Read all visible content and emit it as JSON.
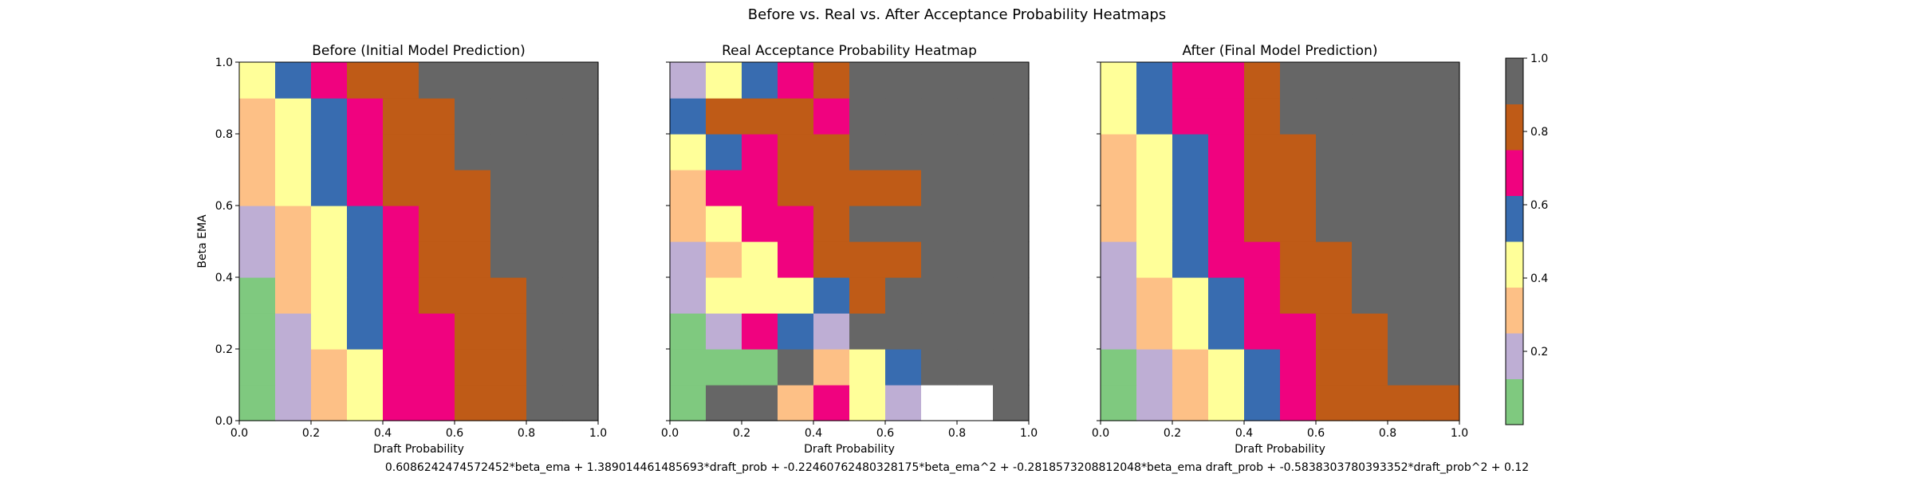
{
  "figure": {
    "title": "Before vs. Real vs. After Acceptance Probability Heatmaps",
    "footer": "0.6086242474572452*beta_ema + 1.389014461485693*draft_prob + -0.22460762480328175*beta_ema^2 + -0.2818573208812048*beta_ema draft_prob + -0.5838303780393352*draft_prob^2 + 0.12"
  },
  "colors": {
    "bins": [
      "#7fc97f",
      "#beaed4",
      "#fdc086",
      "#ffff99",
      "#386cb0",
      "#f0027f",
      "#bf5b17",
      "#666666"
    ],
    "missing": "#ffffff"
  },
  "chart_data": [
    {
      "type": "heatmap",
      "title": "Before (Initial Model Prediction)",
      "xlabel": "Draft Probability",
      "ylabel": "Beta EMA",
      "xlim": [
        0,
        1
      ],
      "ylim": [
        0,
        1
      ],
      "xticks": [
        "0.0",
        "0.2",
        "0.4",
        "0.6",
        "0.8",
        "1.0"
      ],
      "yticks": [
        "0.0",
        "0.2",
        "0.4",
        "0.6",
        "0.8",
        "1.0"
      ],
      "x_bins": [
        0.0,
        0.1,
        0.2,
        0.3,
        0.4,
        0.5,
        0.6,
        0.7,
        0.8,
        0.9
      ],
      "y_bins": [
        0.0,
        0.1,
        0.2,
        0.3,
        0.4,
        0.5,
        0.6,
        0.7,
        0.8,
        0.9
      ],
      "grid": false,
      "values": [
        [
          0.1,
          0.2,
          0.3,
          0.45,
          0.65,
          0.7,
          0.8,
          0.8,
          0.9,
          0.9
        ],
        [
          0.1,
          0.2,
          0.3,
          0.45,
          0.65,
          0.7,
          0.8,
          0.8,
          0.9,
          0.9
        ],
        [
          0.1,
          0.2,
          0.45,
          0.55,
          0.65,
          0.7,
          0.8,
          0.8,
          0.9,
          0.9
        ],
        [
          0.1,
          0.3,
          0.45,
          0.55,
          0.7,
          0.75,
          0.8,
          0.8,
          0.9,
          0.9
        ],
        [
          0.2,
          0.3,
          0.45,
          0.55,
          0.7,
          0.8,
          0.8,
          0.9,
          0.9,
          0.9
        ],
        [
          0.2,
          0.3,
          0.45,
          0.55,
          0.7,
          0.8,
          0.8,
          0.9,
          0.9,
          0.9
        ],
        [
          0.3,
          0.45,
          0.55,
          0.7,
          0.8,
          0.8,
          0.8,
          0.9,
          0.9,
          0.9
        ],
        [
          0.3,
          0.45,
          0.55,
          0.7,
          0.8,
          0.8,
          0.9,
          0.9,
          0.9,
          0.9
        ],
        [
          0.3,
          0.45,
          0.55,
          0.7,
          0.8,
          0.8,
          0.9,
          0.9,
          0.9,
          0.9
        ],
        [
          0.45,
          0.55,
          0.7,
          0.8,
          0.8,
          0.9,
          0.9,
          0.9,
          0.9,
          0.9
        ]
      ]
    },
    {
      "type": "heatmap",
      "title": "Real Acceptance Probability Heatmap",
      "xlabel": "Draft Probability",
      "ylabel": "",
      "xlim": [
        0,
        1
      ],
      "ylim": [
        0,
        1
      ],
      "xticks": [
        "0.0",
        "0.2",
        "0.4",
        "0.6",
        "0.8",
        "1.0"
      ],
      "yticks": [],
      "x_bins": [
        0.0,
        0.1,
        0.2,
        0.3,
        0.4,
        0.5,
        0.6,
        0.7,
        0.8,
        0.9
      ],
      "y_bins": [
        0.0,
        0.1,
        0.2,
        0.3,
        0.4,
        0.5,
        0.6,
        0.7,
        0.8,
        0.9
      ],
      "grid": false,
      "values": [
        [
          0.1,
          0.9,
          0.9,
          0.3,
          0.7,
          0.45,
          0.2,
          null,
          null,
          0.9
        ],
        [
          0.1,
          0.1,
          0.1,
          0.9,
          0.3,
          0.45,
          0.55,
          0.9,
          0.9,
          0.9
        ],
        [
          0.1,
          0.2,
          0.7,
          0.55,
          0.2,
          0.9,
          0.9,
          0.9,
          0.9,
          0.9
        ],
        [
          0.2,
          0.45,
          0.45,
          0.45,
          0.55,
          0.8,
          0.9,
          0.9,
          0.9,
          0.9
        ],
        [
          0.2,
          0.3,
          0.45,
          0.7,
          0.8,
          0.8,
          0.8,
          0.9,
          0.9,
          0.9
        ],
        [
          0.3,
          0.45,
          0.7,
          0.7,
          0.8,
          0.9,
          0.9,
          0.9,
          0.9,
          0.9
        ],
        [
          0.3,
          0.7,
          0.7,
          0.8,
          0.8,
          0.8,
          0.8,
          0.9,
          0.9,
          0.9
        ],
        [
          0.45,
          0.55,
          0.7,
          0.8,
          0.8,
          0.9,
          0.9,
          0.9,
          0.9,
          0.9
        ],
        [
          0.55,
          0.8,
          0.8,
          0.8,
          0.7,
          0.9,
          0.9,
          0.9,
          0.9,
          0.9
        ],
        [
          0.2,
          0.45,
          0.55,
          0.7,
          0.8,
          0.9,
          0.9,
          0.9,
          0.9,
          0.9
        ]
      ]
    },
    {
      "type": "heatmap",
      "title": "After (Final Model Prediction)",
      "xlabel": "Draft Probability",
      "ylabel": "",
      "xlim": [
        0,
        1
      ],
      "ylim": [
        0,
        1
      ],
      "xticks": [
        "0.0",
        "0.2",
        "0.4",
        "0.6",
        "0.8",
        "1.0"
      ],
      "yticks": [],
      "x_bins": [
        0.0,
        0.1,
        0.2,
        0.3,
        0.4,
        0.5,
        0.6,
        0.7,
        0.8,
        0.9
      ],
      "y_bins": [
        0.0,
        0.1,
        0.2,
        0.3,
        0.4,
        0.5,
        0.6,
        0.7,
        0.8,
        0.9
      ],
      "grid": false,
      "values": [
        [
          0.1,
          0.2,
          0.3,
          0.45,
          0.55,
          0.7,
          0.75,
          0.8,
          0.8,
          0.8
        ],
        [
          0.1,
          0.2,
          0.3,
          0.45,
          0.55,
          0.7,
          0.75,
          0.8,
          0.9,
          0.9
        ],
        [
          0.2,
          0.3,
          0.45,
          0.55,
          0.7,
          0.7,
          0.8,
          0.8,
          0.9,
          0.9
        ],
        [
          0.2,
          0.3,
          0.45,
          0.55,
          0.7,
          0.8,
          0.8,
          0.9,
          0.9,
          0.9
        ],
        [
          0.2,
          0.45,
          0.55,
          0.7,
          0.7,
          0.8,
          0.8,
          0.9,
          0.9,
          0.9
        ],
        [
          0.3,
          0.45,
          0.55,
          0.7,
          0.8,
          0.8,
          0.9,
          0.9,
          0.9,
          0.9
        ],
        [
          0.3,
          0.45,
          0.55,
          0.7,
          0.8,
          0.8,
          0.9,
          0.9,
          0.9,
          0.9
        ],
        [
          0.3,
          0.45,
          0.55,
          0.7,
          0.8,
          0.8,
          0.9,
          0.9,
          0.9,
          0.9
        ],
        [
          0.45,
          0.55,
          0.7,
          0.7,
          0.8,
          0.9,
          0.9,
          0.9,
          0.9,
          0.9
        ],
        [
          0.45,
          0.55,
          0.7,
          0.7,
          0.8,
          0.9,
          0.9,
          0.9,
          0.9,
          0.9
        ]
      ]
    }
  ],
  "colorbar": {
    "vmin": 0.0,
    "vmax": 1.0,
    "ticks": [
      "0.2",
      "0.4",
      "0.6",
      "0.8",
      "1.0"
    ]
  }
}
